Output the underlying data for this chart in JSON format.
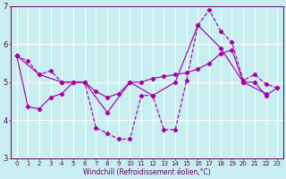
{
  "xlabel": "Windchill (Refroidissement éolien,°C)",
  "xlim_min": -0.5,
  "xlim_max": 23.5,
  "ylim_min": 3.0,
  "ylim_max": 7.0,
  "yticks": [
    3,
    4,
    5,
    6,
    7
  ],
  "xticks": [
    0,
    1,
    2,
    3,
    4,
    5,
    6,
    7,
    8,
    9,
    10,
    11,
    12,
    13,
    14,
    15,
    16,
    17,
    18,
    19,
    20,
    21,
    22,
    23
  ],
  "background_color": "#c8eef0",
  "grid_color": "#ffffff",
  "line_color": "#aa00aa",
  "series1_x": [
    0,
    1,
    2,
    3,
    4,
    5,
    6,
    7,
    8,
    9,
    10,
    11,
    12,
    13,
    14,
    15,
    16,
    17,
    18,
    19,
    20,
    21,
    22,
    23
  ],
  "series1_y": [
    5.7,
    5.55,
    5.2,
    5.3,
    5.0,
    5.0,
    5.0,
    3.8,
    3.65,
    3.5,
    3.5,
    4.65,
    4.65,
    3.75,
    3.75,
    5.05,
    6.5,
    6.9,
    6.35,
    6.05,
    5.05,
    5.2,
    4.95,
    4.85
  ],
  "series2_x": [
    0,
    1,
    2,
    3,
    4,
    5,
    6,
    7,
    8,
    9,
    10,
    11,
    12,
    13,
    14,
    15,
    16,
    17,
    18,
    19,
    20,
    21,
    22,
    23
  ],
  "series2_y": [
    5.7,
    4.35,
    4.3,
    4.6,
    4.7,
    5.0,
    5.0,
    4.75,
    4.6,
    4.7,
    5.0,
    5.0,
    5.1,
    5.15,
    5.2,
    5.25,
    5.35,
    5.5,
    5.75,
    5.85,
    5.0,
    5.0,
    4.65,
    4.85
  ],
  "series3_x": [
    0,
    2,
    4,
    6,
    8,
    10,
    12,
    14,
    16,
    18,
    20,
    22
  ],
  "series3_y": [
    5.7,
    5.2,
    5.0,
    5.0,
    4.2,
    5.0,
    4.65,
    5.0,
    6.5,
    5.9,
    5.0,
    4.7
  ],
  "tick_fontsize": 5.0,
  "xlabel_fontsize": 5.5,
  "tick_color": "#660066",
  "spine_color": "#660066"
}
